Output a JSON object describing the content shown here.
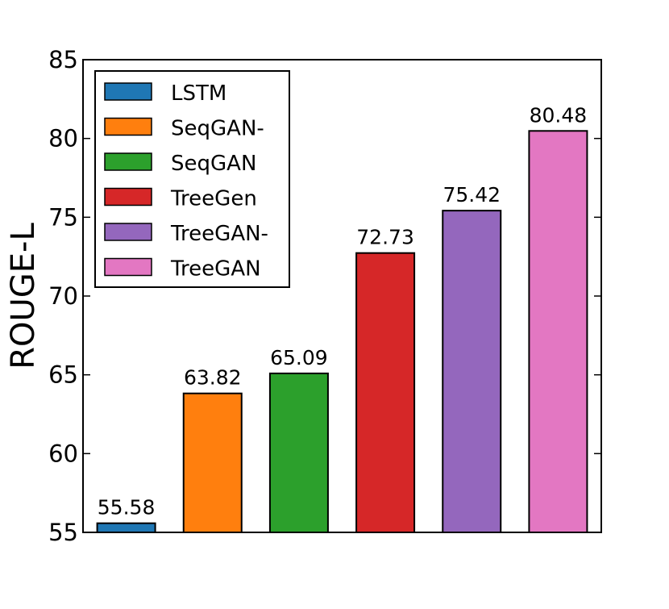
{
  "chart_data": {
    "type": "bar",
    "title": "",
    "xlabel": "",
    "ylabel": "ROUGE-L",
    "ylim": [
      55,
      85
    ],
    "yticks": [
      55,
      60,
      65,
      70,
      75,
      80,
      85
    ],
    "grid": false,
    "legend_position": "top-left",
    "categories": [
      "LSTM",
      "SeqGAN-",
      "SeqGAN",
      "TreeGen",
      "TreeGAN-",
      "TreeGAN"
    ],
    "values": [
      55.58,
      63.82,
      65.09,
      72.73,
      75.42,
      80.48
    ],
    "value_labels": [
      "55.58",
      "63.82",
      "65.09",
      "72.73",
      "75.42",
      "80.48"
    ],
    "colors": [
      "#1f77b4",
      "#ff7f0e",
      "#2ca02c",
      "#d62728",
      "#9467bd",
      "#e377c2"
    ]
  }
}
